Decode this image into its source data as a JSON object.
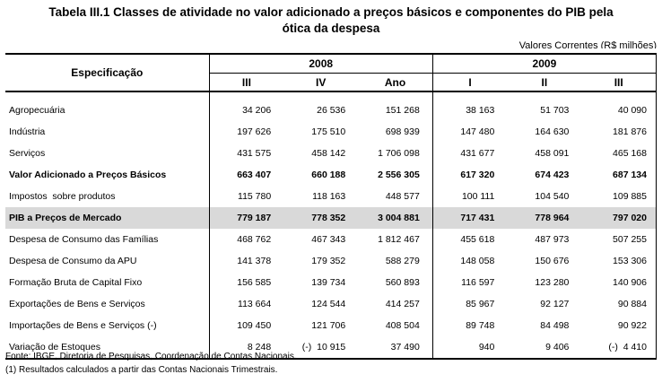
{
  "title_line1": "Tabela III.1 Classes de atividade no valor adicionado a preços básicos e componentes do PIB pela",
  "title_line2": "ótica da despesa",
  "unit": "Valores Correntes (R$ milhões)",
  "header": {
    "spec": "Especificação",
    "year_2008": "2008",
    "year_2009": "2009",
    "quarters": [
      "III",
      "IV",
      "Ano",
      "I",
      "II",
      "III"
    ]
  },
  "rows": [
    {
      "label": "Agropecuária",
      "values": [
        "34 206",
        "26 536",
        "151 268",
        "38 163",
        "51 703",
        "40 090"
      ]
    },
    {
      "label": "Indústria",
      "values": [
        "197 626",
        "175 510",
        "698 939",
        "147 480",
        "164 630",
        "181 876"
      ]
    },
    {
      "label": "Serviços",
      "values": [
        "431 575",
        "458 142",
        "1 706 098",
        "431 677",
        "458 091",
        "465 168"
      ]
    },
    {
      "label": "Valor Adicionado a Preços Básicos",
      "values": [
        "663 407",
        "660 188",
        "2 556 305",
        "617 320",
        "674 423",
        "687 134"
      ]
    },
    {
      "label": "Impostos  sobre produtos",
      "values": [
        "115 780",
        "118 163",
        "448 577",
        "100 111",
        "104 540",
        "109 885"
      ]
    },
    {
      "label": "PIB a Preços de Mercado",
      "values": [
        "779 187",
        "778 352",
        "3 004 881",
        "717 431",
        "778 964",
        "797 020"
      ]
    },
    {
      "label": "Despesa de Consumo das Famílias",
      "values": [
        "468 762",
        "467 343",
        "1 812 467",
        "455 618",
        "487 973",
        "507 255"
      ]
    },
    {
      "label": "Despesa de Consumo da APU",
      "values": [
        "141 378",
        "179 352",
        "588 279",
        "148 058",
        "150 676",
        "153 306"
      ]
    },
    {
      "label": "Formação Bruta de Capital Fixo",
      "values": [
        "156 585",
        "139 734",
        "560 893",
        "116 597",
        "123 280",
        "140 906"
      ]
    },
    {
      "label": "Exportações de Bens e Serviços",
      "values": [
        "113 664",
        "124 544",
        "414 257",
        "85 967",
        "92 127",
        "90 884"
      ]
    },
    {
      "label": "Importações de Bens e Serviços (-)",
      "values": [
        "109 450",
        "121 706",
        "408 504",
        "89 748",
        "84 498",
        "90 922"
      ]
    },
    {
      "label": "Variação de Estoques",
      "values": [
        "8 248",
        "(-)  10 915",
        "37 490",
        "940",
        "9 406",
        "(-)  4 410"
      ]
    }
  ],
  "notes": [
    "Fonte: IBGE, Diretoria de Pesquisas, Coordenação de Contas Nacionais.",
    "(1) Resultados calculados a partir das Contas Nacionais Trimestrais."
  ]
}
